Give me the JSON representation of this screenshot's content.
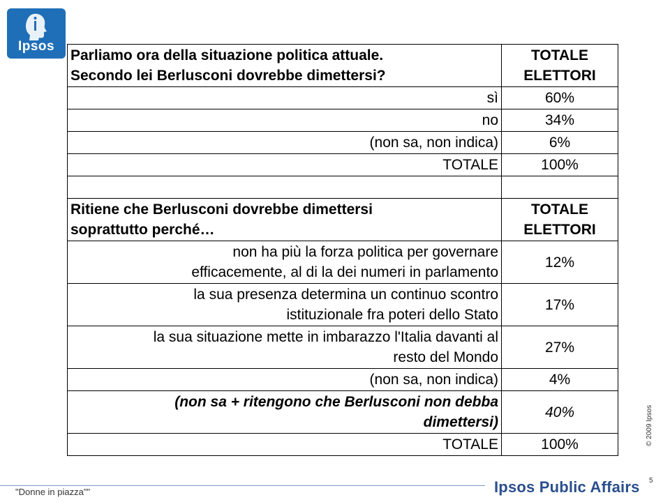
{
  "logo": {
    "text": "Ipsos"
  },
  "section1": {
    "question_line1": "Parliamo ora della situazione politica attuale.",
    "question_line2": "Secondo lei Berlusconi dovrebbe dimettersi?",
    "header_line1": "TOTALE",
    "header_line2": "ELETTORI",
    "rows": [
      {
        "label": "sì",
        "value": "60%"
      },
      {
        "label": "no",
        "value": "34%"
      },
      {
        "label": "(non sa, non indica)",
        "value": "6%"
      },
      {
        "label": "TOTALE",
        "value": "100%"
      }
    ]
  },
  "section2": {
    "question_line1": "Ritiene che Berlusconi dovrebbe dimettersi",
    "question_line2": "soprattutto perché…",
    "header_line1": "TOTALE",
    "header_line2": "ELETTORI",
    "rows": [
      {
        "line1": "non ha più la forza politica per governare",
        "line2": "efficacemente, al di la dei numeri in parlamento",
        "value": "12%"
      },
      {
        "line1": "la sua presenza determina un continuo scontro",
        "line2": "istituzionale fra poteri dello Stato",
        "value": "17%"
      },
      {
        "line1": "la sua situazione mette in imbarazzo l'Italia davanti al",
        "line2": "resto del Mondo",
        "value": "27%"
      },
      {
        "line1": "(non sa, non indica)",
        "value": "4%"
      },
      {
        "line1": "(non sa + ritengono che Berlusconi non debba",
        "line2": "dimettersi)",
        "value": "40%"
      },
      {
        "line1": "TOTALE",
        "value": "100%"
      }
    ]
  },
  "footer": {
    "copyright": "© 2009 Ipsos",
    "title": "\"Donne in piazza\"\"",
    "page_number": "5",
    "brand": "Ipsos Public Affairs"
  }
}
